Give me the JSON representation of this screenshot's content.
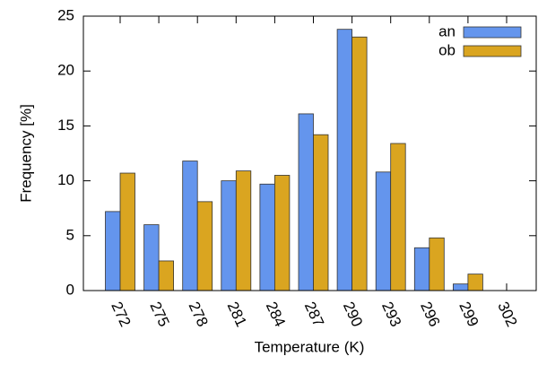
{
  "chart_data": {
    "type": "bar",
    "x_label": "Temperature (K)",
    "y_label": "Frequency [%]",
    "categories": [
      "272",
      "275",
      "278",
      "281",
      "284",
      "287",
      "290",
      "293",
      "296",
      "299",
      "302"
    ],
    "series": [
      {
        "name": "an",
        "color": "#6495ed",
        "values": [
          7.2,
          6.0,
          11.8,
          10.0,
          9.7,
          16.1,
          23.8,
          10.8,
          3.9,
          0.6,
          0
        ]
      },
      {
        "name": "ob",
        "color": "#daa520",
        "values": [
          10.7,
          2.7,
          8.1,
          10.9,
          10.5,
          14.2,
          23.1,
          13.4,
          4.8,
          1.5,
          0
        ]
      }
    ],
    "ylim": [
      0,
      25
    ],
    "yticks": [
      0,
      5,
      10,
      15,
      20,
      25
    ],
    "legend": "top-right"
  }
}
